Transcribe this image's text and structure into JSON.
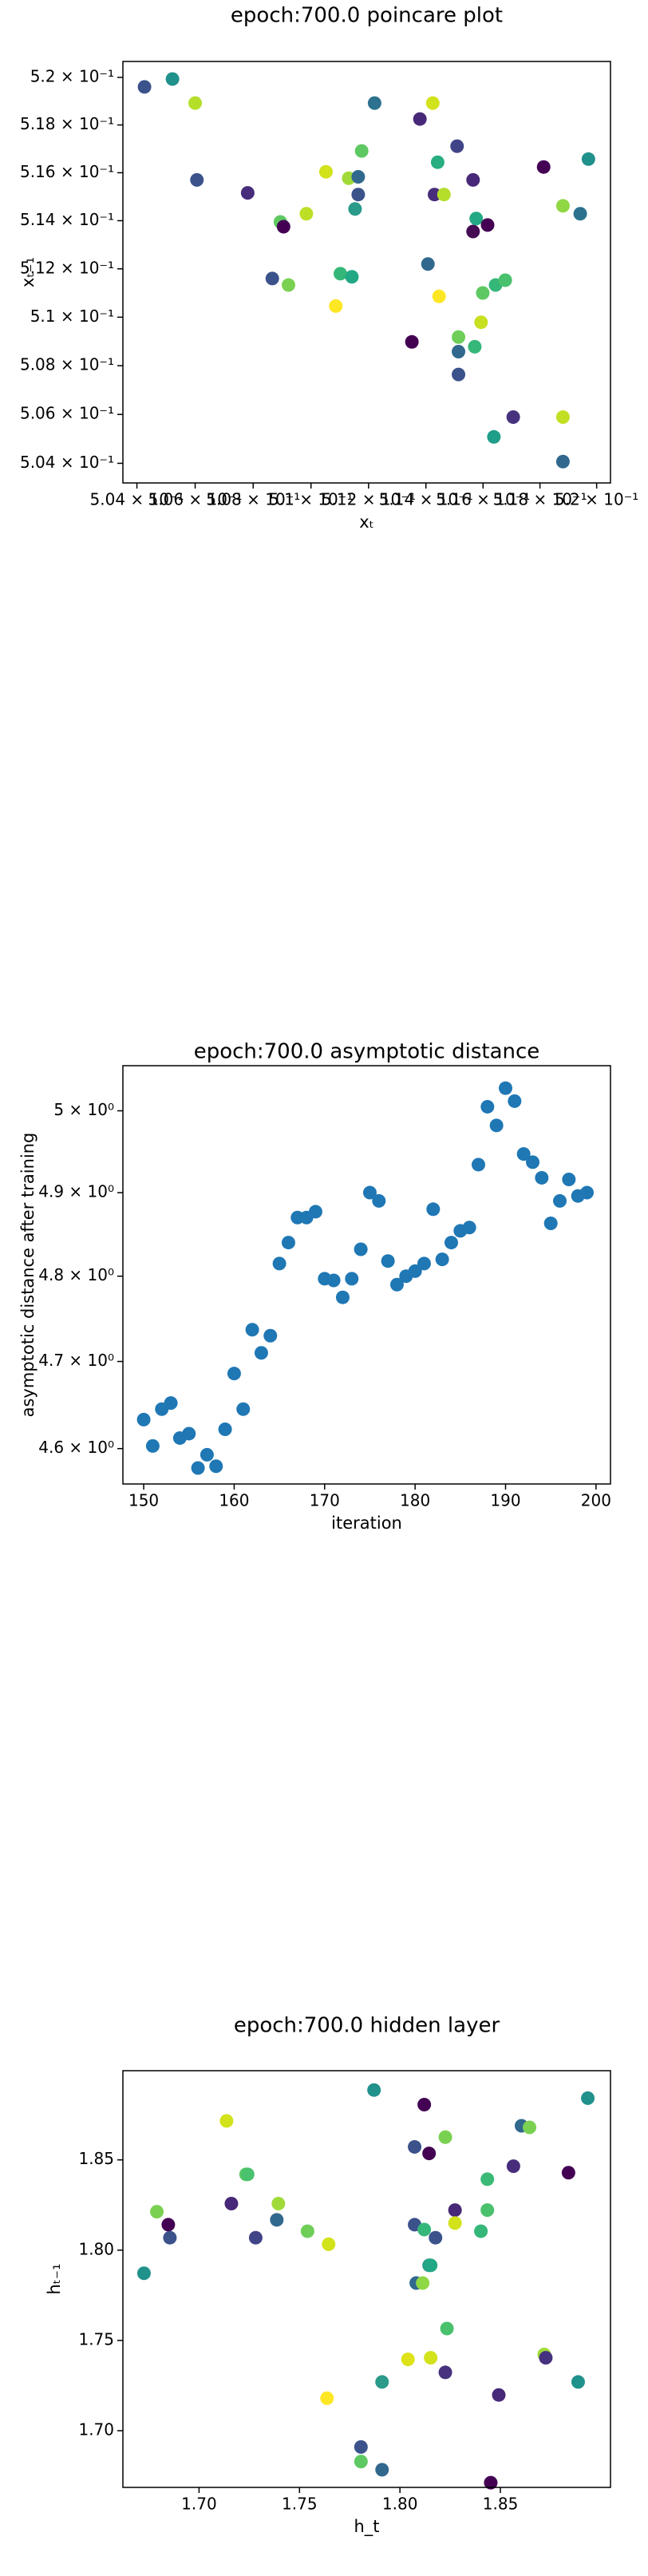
{
  "chart_data": [
    {
      "type": "scatter",
      "title": "epoch:700.0 poincare plot",
      "x_label": "xₜ",
      "y_label": "xₜ₋₁",
      "xscale": "log",
      "yscale": "log",
      "grid": false,
      "xlim": [
        0.50352,
        0.52049
      ],
      "ylim": [
        0.5032,
        0.52067
      ],
      "xticks": [
        {
          "value": 0.504,
          "label": "5.04 × 10⁻¹"
        },
        {
          "value": 0.506,
          "label": "5.06 × 10⁻¹"
        },
        {
          "value": 0.508,
          "label": "5.08 × 10⁻¹"
        },
        {
          "value": 0.51,
          "label": "5.1 × 10⁻¹"
        },
        {
          "value": 0.512,
          "label": "5.12 × 10⁻¹"
        },
        {
          "value": 0.514,
          "label": "5.14 × 10⁻¹"
        },
        {
          "value": 0.516,
          "label": "5.16 × 10⁻¹"
        },
        {
          "value": 0.518,
          "label": "5.18 × 10⁻¹"
        },
        {
          "value": 0.52,
          "label": "5.2 × 10⁻¹"
        }
      ],
      "yticks": [
        {
          "value": 0.504,
          "label": "5.04 × 10⁻¹"
        },
        {
          "value": 0.506,
          "label": "5.06 × 10⁻¹"
        },
        {
          "value": 0.508,
          "label": "5.08 × 10⁻¹"
        },
        {
          "value": 0.51,
          "label": "5.1 × 10⁻¹"
        },
        {
          "value": 0.512,
          "label": "5.12 × 10⁻¹"
        },
        {
          "value": 0.514,
          "label": "5.14 × 10⁻¹"
        },
        {
          "value": 0.516,
          "label": "5.16 × 10⁻¹"
        },
        {
          "value": 0.518,
          "label": "5.18 × 10⁻¹"
        },
        {
          "value": 0.52,
          "label": "5.2 × 10⁻¹"
        }
      ],
      "x": [
        0.50426,
        0.50522,
        0.506,
        0.50606,
        0.50781,
        0.50894,
        0.50905,
        0.50866,
        0.50922,
        0.50984,
        0.51052,
        0.51086,
        0.51102,
        0.51131,
        0.51142,
        0.51153,
        0.51164,
        0.51164,
        0.51176,
        0.51221,
        0.51351,
        0.51379,
        0.51407,
        0.51424,
        0.5143,
        0.51441,
        0.51446,
        0.51463,
        0.51509,
        0.51514,
        0.51514,
        0.51514,
        0.51565,
        0.51565,
        0.51576,
        0.51571,
        0.51593,
        0.51599,
        0.51616,
        0.51644,
        0.51638,
        0.51678,
        0.51706,
        0.51813,
        0.51881,
        0.51881,
        0.51881,
        0.51942,
        0.51971
      ],
      "y": [
        0.5196,
        0.51993,
        0.51892,
        0.5157,
        0.51516,
        0.51395,
        0.51375,
        0.5116,
        0.51133,
        0.51429,
        0.51604,
        0.51046,
        0.5118,
        0.51577,
        0.51167,
        0.51449,
        0.51583,
        0.51509,
        0.51691,
        0.51892,
        0.50898,
        0.51825,
        0.5122,
        0.51892,
        0.51509,
        0.51644,
        0.51086,
        0.51509,
        0.51711,
        0.50918,
        0.50858,
        0.50764,
        0.5157,
        0.51355,
        0.51409,
        0.50878,
        0.50979,
        0.511,
        0.51382,
        0.51133,
        0.50508,
        0.51153,
        0.50589,
        0.51624,
        0.51462,
        0.50589,
        0.50407,
        0.51429,
        0.51657
      ],
      "colors": [
        "#3b528b",
        "#21918c",
        "#b5de2b",
        "#3b528b",
        "#472d7b",
        "#5ec962",
        "#440154",
        "#3b528b",
        "#7ad151",
        "#bddf26",
        "#d2e21b",
        "#fde725",
        "#35b779",
        "#a0da39",
        "#22a884",
        "#2a9a8a",
        "#31688e",
        "#3b528b",
        "#5ec962",
        "#2c728e",
        "#440154",
        "#482878",
        "#31688e",
        "#d2e21b",
        "#472d7b",
        "#28ae80",
        "#fde725",
        "#b5de2b",
        "#414487",
        "#6ece58",
        "#31688e",
        "#3b528b",
        "#482878",
        "#450c54",
        "#22a884",
        "#35b779",
        "#c8e020",
        "#5ec962",
        "#440154",
        "#35b779",
        "#1f9e89",
        "#4ac16d",
        "#46327e",
        "#440154",
        "#8fd744",
        "#c2df23",
        "#31688e",
        "#2c728e",
        "#21918c"
      ]
    },
    {
      "type": "scatter",
      "title": "epoch:700.0 asymptotic distance",
      "x_label": "iteration",
      "y_label": "asymptotic distance after training",
      "yscale": "log",
      "grid": false,
      "color": "#1f77b4",
      "xlim": [
        147.7,
        201.6
      ],
      "ylim": [
        4.56,
        5.056
      ],
      "xticks": [
        150,
        160,
        170,
        180,
        190,
        200
      ],
      "yticks": [
        {
          "value": 4.6,
          "label": "4.6 × 10⁰"
        },
        {
          "value": 4.7,
          "label": "4.7 × 10⁰"
        },
        {
          "value": 4.8,
          "label": "4.8 × 10⁰"
        },
        {
          "value": 4.9,
          "label": "4.9 × 10⁰"
        },
        {
          "value": 5,
          "label": "5 × 10⁰"
        }
      ],
      "x": [
        150,
        151,
        152,
        153,
        154,
        155,
        156,
        157,
        158,
        159,
        160,
        161,
        162,
        163,
        164,
        165,
        166,
        167,
        168,
        169,
        170,
        171,
        172,
        173,
        174,
        175,
        176,
        177,
        178,
        179,
        180,
        181,
        182,
        183,
        184,
        185,
        186,
        187,
        188,
        189,
        190,
        191,
        192,
        193,
        194,
        195,
        196,
        197,
        198,
        199
      ],
      "y": [
        4.633,
        4.603,
        4.645,
        4.652,
        4.612,
        4.617,
        4.578,
        4.593,
        4.58,
        4.622,
        4.686,
        4.645,
        4.737,
        4.71,
        4.73,
        4.815,
        4.84,
        4.87,
        4.87,
        4.877,
        4.797,
        4.795,
        4.775,
        4.797,
        4.832,
        4.9,
        4.89,
        4.818,
        4.79,
        4.8,
        4.806,
        4.815,
        4.88,
        4.82,
        4.84,
        4.854,
        4.858,
        4.934,
        5.005,
        4.982,
        5.028,
        5.012,
        4.947,
        4.937,
        4.918,
        4.863,
        4.89,
        4.916,
        4.896,
        4.9
      ]
    },
    {
      "type": "scatter",
      "title": "epoch:700.0 hidden layer",
      "x_label": "h_t",
      "y_label": "hₜ₋₁",
      "grid": false,
      "xlim": [
        1.6621,
        1.9048
      ],
      "ylim": [
        1.6686,
        1.8994
      ],
      "xticks": [
        {
          "value": 1.7,
          "label": "1.70"
        },
        {
          "value": 1.75,
          "label": "1.75"
        },
        {
          "value": 1.8,
          "label": "1.80"
        },
        {
          "value": 1.85,
          "label": "1.85"
        }
      ],
      "yticks": [
        {
          "value": 1.7,
          "label": "1.70"
        },
        {
          "value": 1.75,
          "label": "1.75"
        },
        {
          "value": 1.8,
          "label": "1.80"
        },
        {
          "value": 1.85,
          "label": "1.85"
        }
      ],
      "x": [
        1.6726,
        1.679,
        1.6847,
        1.6855,
        1.7137,
        1.7161,
        1.7234,
        1.7242,
        1.7282,
        1.7387,
        1.7395,
        1.754,
        1.7645,
        1.7637,
        1.7871,
        1.7911,
        1.7806,
        1.7806,
        1.7911,
        1.804,
        1.8073,
        1.8121,
        1.8081,
        1.8113,
        1.8073,
        1.8121,
        1.8145,
        1.8153,
        1.8145,
        1.8153,
        1.8177,
        1.8226,
        1.8234,
        1.8226,
        1.8274,
        1.8274,
        1.8403,
        1.8435,
        1.8435,
        1.8452,
        1.8492,
        1.8565,
        1.8605,
        1.8645,
        1.8718,
        1.8726,
        1.8839,
        1.8887,
        1.8935
      ],
      "y": [
        1.7872,
        1.8213,
        1.8141,
        1.8069,
        1.8716,
        1.8258,
        1.842,
        1.842,
        1.8069,
        1.8168,
        1.8258,
        1.8105,
        1.8033,
        1.718,
        1.8887,
        1.727,
        1.691,
        1.6829,
        1.6784,
        1.7395,
        1.8572,
        1.8806,
        1.7818,
        1.7818,
        1.8141,
        1.8114,
        1.7916,
        1.7916,
        1.8536,
        1.7404,
        1.8069,
        1.8626,
        1.7566,
        1.7323,
        1.8222,
        1.815,
        1.8105,
        1.8393,
        1.8222,
        1.6712,
        1.7198,
        1.8465,
        1.8689,
        1.868,
        1.7422,
        1.7404,
        1.8429,
        1.727,
        1.8842
      ],
      "colors": [
        "#21918c",
        "#7ad151",
        "#440154",
        "#3b528b",
        "#d2e21b",
        "#482878",
        "#5ec962",
        "#4ac16d",
        "#414487",
        "#31688e",
        "#a0da39",
        "#6ece58",
        "#d2e21b",
        "#fde725",
        "#21918c",
        "#2a9a8a",
        "#3b528b",
        "#5ec962",
        "#31688e",
        "#dde318",
        "#3b528b",
        "#440154",
        "#31688e",
        "#8fd744",
        "#3b528b",
        "#35b779",
        "#2a9a8a",
        "#22a884",
        "#440154",
        "#d2e21b",
        "#3b528b",
        "#7ad151",
        "#4ac16d",
        "#46327e",
        "#482878",
        "#d2e21b",
        "#35b779",
        "#3aba76",
        "#4ac16d",
        "#440154",
        "#482878",
        "#472d7b",
        "#31688e",
        "#7ad151",
        "#a0da39",
        "#46327e",
        "#440154",
        "#21918c",
        "#21918c"
      ]
    }
  ]
}
